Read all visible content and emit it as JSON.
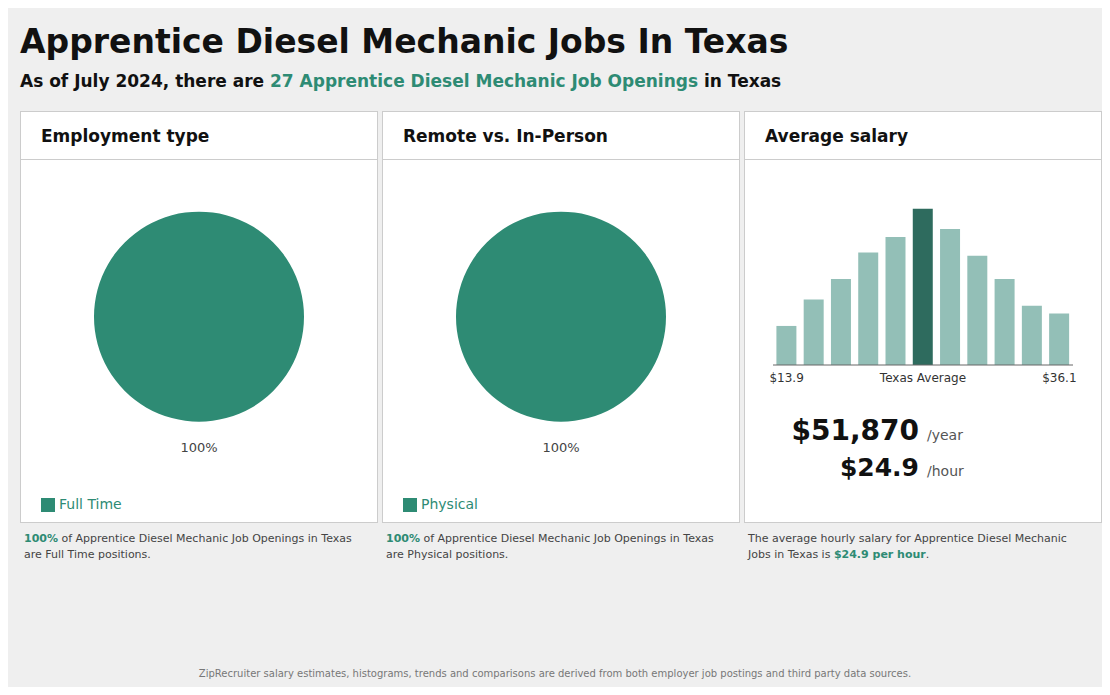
{
  "title": "Apprentice Diesel Mechanic Jobs In Texas",
  "subtitle": [
    {
      "text": "As of July 2024, there are "
    },
    {
      "text": "27 Apprentice Diesel Mechanic Job Openings",
      "color": "#2e8b74"
    },
    {
      "text": " in Texas"
    }
  ],
  "footnote": "ZipRecruiter salary estimates, histograms, trends and comparisons are derived from both employer job postings and third party data sources.",
  "chart_data": [
    {
      "type": "pie",
      "title": "Employment type",
      "categories": [
        "Full Time"
      ],
      "values": [
        100
      ],
      "value_labels": [
        "100%"
      ],
      "colors": [
        "#2e8b74"
      ],
      "data_labels": true,
      "legend": "lower left",
      "footer": [
        {
          "text": "100%",
          "color": "#2e8b74"
        },
        {
          "text": " of Apprentice Diesel Mechanic Job Openings in Texas\nare Full Time positions."
        }
      ]
    },
    {
      "type": "pie",
      "title": "Remote vs. In-Person",
      "categories": [
        "Physical"
      ],
      "values": [
        100
      ],
      "value_labels": [
        "100%"
      ],
      "colors": [
        "#2e8b74"
      ],
      "data_labels": true,
      "legend": "lower left",
      "footer": [
        {
          "text": "100%",
          "color": "#2e8b74"
        },
        {
          "text": " of Apprentice Diesel Mechanic Job Openings in Texas\nare Physical positions."
        }
      ]
    },
    {
      "type": "bar",
      "title": "Average salary",
      "categories": [
        "$13.9",
        null,
        null,
        null,
        null,
        "Texas Average",
        null,
        null,
        null,
        null,
        "$36.1"
      ],
      "values": [
        0.25,
        0.42,
        0.55,
        0.72,
        0.82,
        1.0,
        0.87,
        0.7,
        0.55,
        0.38,
        0.33
      ],
      "colors": [
        "#93bfb7",
        "#93bfb7",
        "#93bfb7",
        "#93bfb7",
        "#93bfb7",
        "#2e6b5e",
        "#93bfb7",
        "#93bfb7",
        "#93bfb7",
        "#93bfb7",
        "#93bfb7"
      ],
      "ylim": [
        0,
        1.12
      ],
      "tick_labels": "x",
      "grid": false,
      "annotations": [
        {
          "text": "$51,870",
          "suffix": "/year"
        },
        {
          "text": "$24.9",
          "suffix": "/hour"
        }
      ],
      "footer": [
        {
          "text": "The average hourly salary for Apprentice Diesel Mechanic\nJobs in Texas is "
        },
        {
          "text": "$24.9 per hour",
          "color": "#2e8b74"
        },
        {
          "text": "."
        }
      ]
    }
  ]
}
